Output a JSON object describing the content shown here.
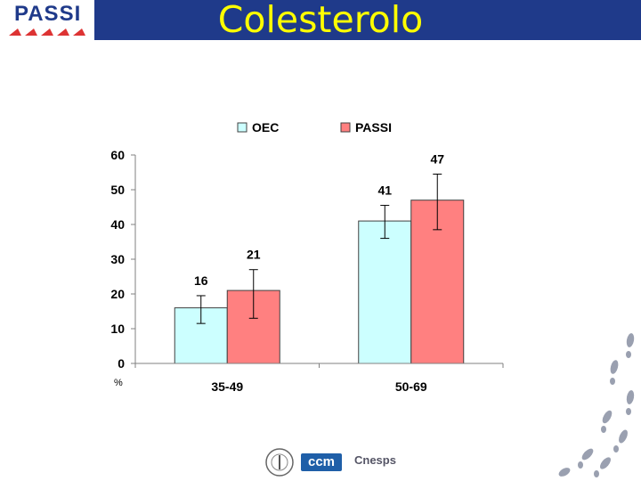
{
  "header": {
    "title": "Colesterolo",
    "logo": "PASSI"
  },
  "colors": {
    "header_bar": "#1f3a8a",
    "title": "#ffff00",
    "oec": "#ccffff",
    "passi": "#ff8080",
    "footprints": "#9aa0b0"
  },
  "chart_data": {
    "type": "bar",
    "title": "",
    "categories": [
      "35-49",
      "50-69"
    ],
    "series": [
      {
        "name": "OEC",
        "values": [
          16,
          41
        ],
        "error_low": [
          11.5,
          36
        ],
        "error_high": [
          19.5,
          45.5
        ],
        "labels": [
          "16",
          "41"
        ]
      },
      {
        "name": "PASSI",
        "values": [
          21,
          47
        ],
        "error_low": [
          13,
          38.5
        ],
        "error_high": [
          27,
          54.5
        ],
        "labels": [
          "21",
          "47"
        ]
      }
    ],
    "yticks": [
      "0",
      "10",
      "20",
      "30",
      "40",
      "50",
      "60"
    ],
    "ylim": [
      0,
      60
    ],
    "ylabel": "%",
    "xlabel": "",
    "legend": "top-center",
    "grid": false
  },
  "footer": {
    "logos": [
      "ccm",
      "Cnesps"
    ]
  }
}
